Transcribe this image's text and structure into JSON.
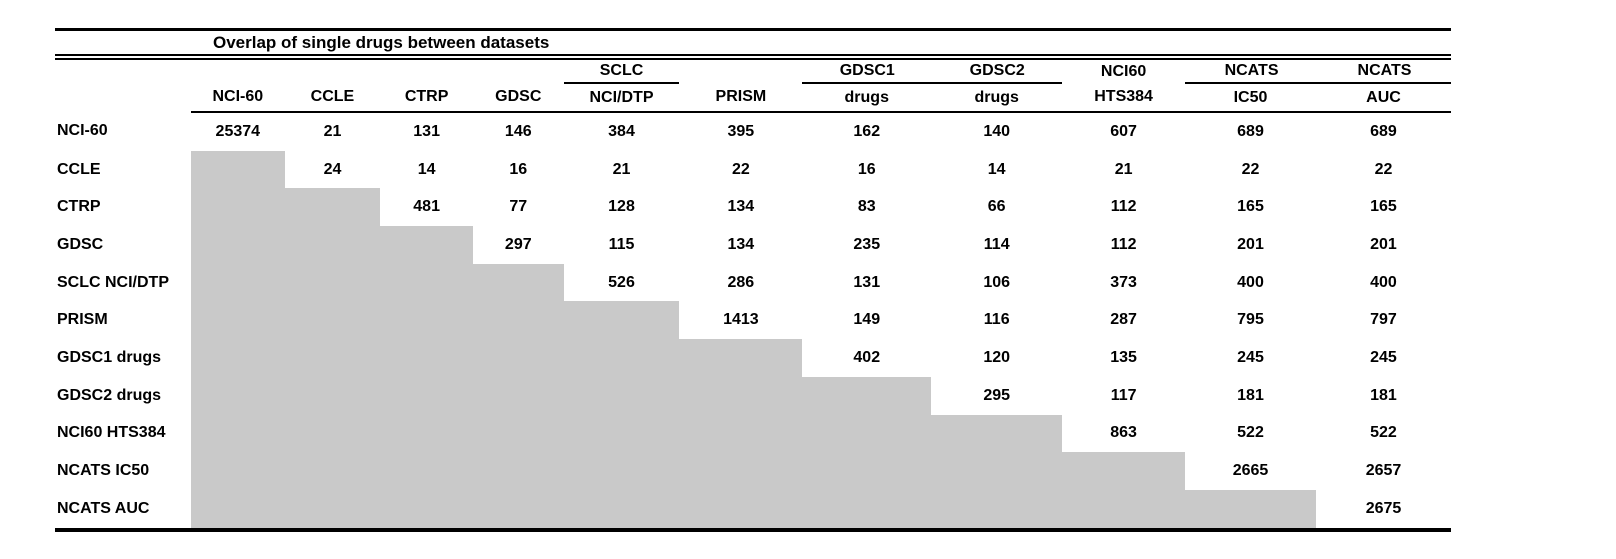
{
  "figure": {
    "title": "Overlap of single drugs between datasets"
  },
  "table": {
    "column_groups": {
      "sclc": "SCLC",
      "gdsc1": "GDSC1",
      "gdsc2": "GDSC2",
      "nci60": "NCI60",
      "ncats_ic50": "NCATS",
      "ncats_auc": "NCATS"
    },
    "sub_headers": [
      "NCI-60",
      "CCLE",
      "CTRP",
      "GDSC",
      "NCI/DTP",
      "PRISM",
      "drugs",
      "drugs",
      "HTS384",
      "IC50",
      "AUC"
    ],
    "rows": [
      {
        "label": "NCI-60",
        "values": [
          "25374",
          "21",
          "131",
          "146",
          "384",
          "395",
          "162",
          "140",
          "607",
          "689",
          "689"
        ]
      },
      {
        "label": "CCLE",
        "values": [
          null,
          "24",
          "14",
          "16",
          "21",
          "22",
          "16",
          "14",
          "21",
          "22",
          "22"
        ]
      },
      {
        "label": "CTRP",
        "values": [
          null,
          null,
          "481",
          "77",
          "128",
          "134",
          "83",
          "66",
          "112",
          "165",
          "165"
        ]
      },
      {
        "label": "GDSC",
        "values": [
          null,
          null,
          null,
          "297",
          "115",
          "134",
          "235",
          "114",
          "112",
          "201",
          "201"
        ]
      },
      {
        "label": "SCLC NCI/DTP",
        "values": [
          null,
          null,
          null,
          null,
          "526",
          "286",
          "131",
          "106",
          "373",
          "400",
          "400"
        ]
      },
      {
        "label": "PRISM",
        "values": [
          null,
          null,
          null,
          null,
          null,
          "1413",
          "149",
          "116",
          "287",
          "795",
          "797"
        ]
      },
      {
        "label": "GDSC1 drugs",
        "values": [
          null,
          null,
          null,
          null,
          null,
          null,
          "402",
          "120",
          "135",
          "245",
          "245"
        ]
      },
      {
        "label": "GDSC2 drugs",
        "values": [
          null,
          null,
          null,
          null,
          null,
          null,
          null,
          "295",
          "117",
          "181",
          "181"
        ]
      },
      {
        "label": "NCI60 HTS384",
        "values": [
          null,
          null,
          null,
          null,
          null,
          null,
          null,
          null,
          "863",
          "522",
          "522"
        ]
      },
      {
        "label": "NCATS IC50",
        "values": [
          null,
          null,
          null,
          null,
          null,
          null,
          null,
          null,
          null,
          "2665",
          "2657"
        ]
      },
      {
        "label": "NCATS AUC",
        "values": [
          null,
          null,
          null,
          null,
          null,
          null,
          null,
          null,
          null,
          null,
          "2675"
        ]
      }
    ]
  },
  "colors": {
    "shaded_cell": "#c9c9c9",
    "text": "#000000",
    "rule": "#000000"
  },
  "chart_data": {
    "type": "table",
    "title": "Overlap of single drugs between datasets",
    "columns": [
      "NCI-60",
      "CCLE",
      "CTRP",
      "GDSC",
      "SCLC NCI/DTP",
      "PRISM",
      "GDSC1 drugs",
      "GDSC2 drugs",
      "NCI60 HTS384",
      "NCATS IC50",
      "NCATS AUC"
    ],
    "row_labels": [
      "NCI-60",
      "CCLE",
      "CTRP",
      "GDSC",
      "SCLC NCI/DTP",
      "PRISM",
      "GDSC1 drugs",
      "GDSC2 drugs",
      "NCI60 HTS384",
      "NCATS IC50",
      "NCATS AUC"
    ],
    "matrix": [
      [
        25374,
        21,
        131,
        146,
        384,
        395,
        162,
        140,
        607,
        689,
        689
      ],
      [
        null,
        24,
        14,
        16,
        21,
        22,
        16,
        14,
        21,
        22,
        22
      ],
      [
        null,
        null,
        481,
        77,
        128,
        134,
        83,
        66,
        112,
        165,
        165
      ],
      [
        null,
        null,
        null,
        297,
        115,
        134,
        235,
        114,
        112,
        201,
        201
      ],
      [
        null,
        null,
        null,
        null,
        526,
        286,
        131,
        106,
        373,
        400,
        400
      ],
      [
        null,
        null,
        null,
        null,
        null,
        1413,
        149,
        116,
        287,
        795,
        797
      ],
      [
        null,
        null,
        null,
        null,
        null,
        null,
        402,
        120,
        135,
        245,
        245
      ],
      [
        null,
        null,
        null,
        null,
        null,
        null,
        null,
        295,
        117,
        181,
        181
      ],
      [
        null,
        null,
        null,
        null,
        null,
        null,
        null,
        null,
        863,
        522,
        522
      ],
      [
        null,
        null,
        null,
        null,
        null,
        null,
        null,
        null,
        null,
        2665,
        2657
      ],
      [
        null,
        null,
        null,
        null,
        null,
        null,
        null,
        null,
        null,
        null,
        2675
      ]
    ],
    "legend": "lower triangle shaded gray (no value); diagonal = dataset size"
  }
}
